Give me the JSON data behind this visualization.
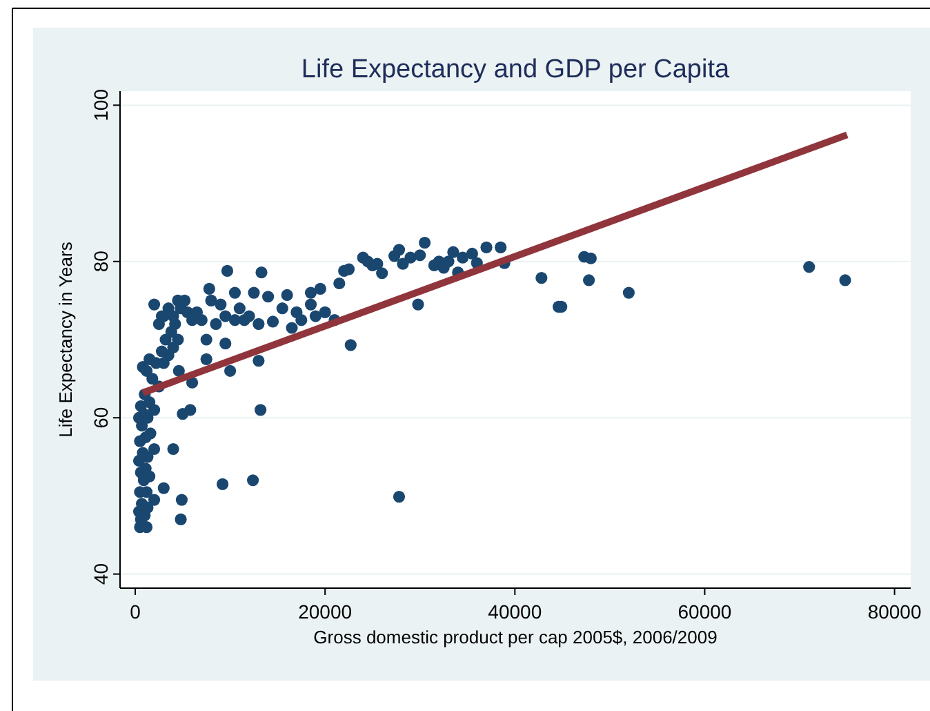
{
  "chart_data": {
    "type": "scatter",
    "title": "Life Expectancy and GDP per Capita",
    "xlabel": "Gross domestic product per cap 2005$, 2006/2009",
    "ylabel": "Life Expectancy in Years",
    "xlim": [
      -1600,
      81700
    ],
    "ylim": [
      38.2,
      101.8
    ],
    "xticks": [
      0,
      20000,
      40000,
      60000,
      80000
    ],
    "yticks": [
      40,
      60,
      80,
      100
    ],
    "grid": "y",
    "series": [
      {
        "marker": "circle",
        "color": "#1a476f",
        "x": [
          500,
          1200,
          600,
          1000,
          400,
          1300,
          700,
          2000,
          500,
          1200,
          900,
          1500,
          600,
          1100,
          400,
          1300,
          800,
          2000,
          500,
          1100,
          1600,
          700,
          400,
          1300,
          900,
          2000,
          600,
          1500,
          1000,
          2500,
          1800,
          1200,
          800,
          2200,
          1500,
          3000,
          3500,
          2800,
          4000,
          4500,
          3800,
          4200,
          3000,
          2500,
          3500,
          4800,
          4500,
          5200,
          2000,
          2800,
          5500,
          4000,
          6000,
          3200,
          4600,
          5000,
          4000,
          3000,
          4900,
          4800,
          5800,
          9700,
          13300,
          7800,
          10500,
          12500,
          14000,
          16000,
          8000,
          9000,
          11000,
          12000,
          6500,
          7000,
          8500,
          9500,
          10500,
          11500,
          13000,
          14500,
          15500,
          17000,
          18500,
          17500,
          19000,
          20000,
          16500,
          7500,
          9500,
          13000,
          7500,
          10000,
          6000,
          13200,
          9200,
          12400,
          21500,
          22000,
          22500,
          21000,
          22700,
          18500,
          19500,
          24000,
          24500,
          25000,
          25500,
          26000,
          27300,
          27800,
          29000,
          30000,
          28200,
          30500,
          31500,
          32000,
          32500,
          33000,
          33500,
          34000,
          34500,
          35500,
          36000,
          37000,
          38500,
          38900,
          29800,
          27800,
          42800,
          44600,
          44900,
          47300,
          48000,
          47800,
          52000,
          71000,
          74800
        ],
        "values": [
          46,
          46,
          47,
          47.5,
          48,
          48.5,
          49,
          49.5,
          50.5,
          50.5,
          52,
          52.5,
          53,
          53.5,
          54.5,
          55,
          55.5,
          56,
          57,
          57.5,
          58,
          59,
          60,
          60,
          60.5,
          61,
          61.5,
          62,
          63,
          64,
          65,
          66,
          66.5,
          67,
          67.5,
          67,
          68,
          68.5,
          69,
          70,
          71,
          72,
          73,
          72,
          74,
          74,
          75,
          75,
          74.5,
          73,
          73.5,
          73,
          72.5,
          70,
          66,
          60.5,
          56,
          51,
          49.5,
          47,
          61,
          78.8,
          78.6,
          76.5,
          76,
          76,
          75.5,
          75.7,
          75,
          74.5,
          74,
          73,
          73.5,
          72.5,
          72,
          73,
          72.5,
          72.5,
          72,
          72.3,
          74,
          73.5,
          74.5,
          72.5,
          73,
          73.5,
          71.5,
          70,
          69.5,
          67.3,
          67.5,
          66,
          64.5,
          61,
          51.5,
          52,
          77.2,
          78.8,
          79,
          72.5,
          69.3,
          76,
          76.5,
          80.5,
          80,
          79.5,
          79.7,
          78.5,
          80.7,
          81.5,
          80.5,
          80.8,
          79.7,
          82.4,
          79.5,
          80,
          79.2,
          80,
          81.2,
          78.6,
          80.5,
          81,
          79.8,
          81.8,
          81.8,
          79.8,
          74.5,
          49.9,
          77.9,
          74.2,
          74.2,
          80.6,
          80.4,
          77.6,
          76,
          79.3,
          77.6
        ]
      },
      {
        "type": "line",
        "marker": "none",
        "color": "#90353b",
        "x": [
          800,
          75000
        ],
        "values": [
          63.2,
          96.2
        ]
      }
    ]
  }
}
